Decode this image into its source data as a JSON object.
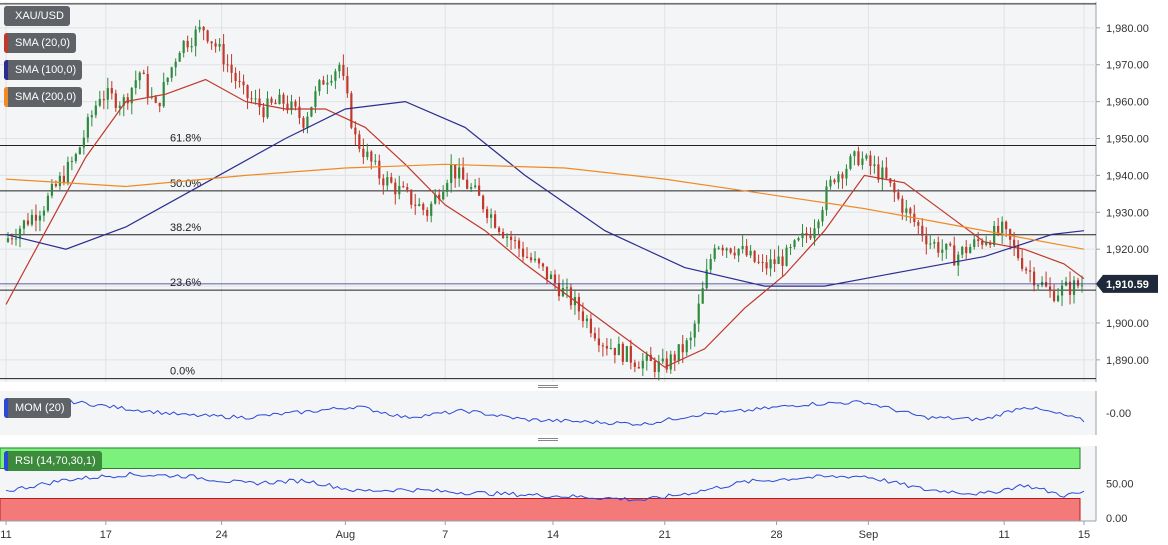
{
  "legends": {
    "pair": "XAU/USD",
    "sma20": "SMA (20,0)",
    "sma100": "SMA (100,0)",
    "sma200": "SMA (200,0)",
    "mom": "MOM (20)",
    "rsi": "RSI (14,70,30,1)"
  },
  "colors": {
    "background": "#f4f5f7",
    "grid": "#dfe2e6",
    "candle_up": "#2e8b3e",
    "candle_down": "#c0392b",
    "sma20": "#c0392b",
    "sma100": "#2b2c8f",
    "sma200": "#f08a24",
    "mom": "#2b49d6",
    "rsi": "#2b49d6",
    "rsi_overbought": "#7cf27c",
    "rsi_oversold": "#f47a7a",
    "price_tag": "#1e2a3a"
  },
  "chart_data": [
    {
      "type": "candlestick",
      "symbol": "XAU/USD",
      "ylim": [
        1884,
        1987
      ],
      "yticks": [
        "1,890.00",
        "1,900.00",
        "1,910.00",
        "1,920.00",
        "1,930.00",
        "1,940.00",
        "1,950.00",
        "1,960.00",
        "1,970.00",
        "1,980.00"
      ],
      "ytick_values": [
        1890,
        1900,
        1910,
        1920,
        1930,
        1940,
        1950,
        1960,
        1970,
        1980
      ],
      "x_labels": [
        "11",
        "17",
        "24",
        "Aug",
        "7",
        "14",
        "21",
        "28",
        "Sep",
        "11",
        "15"
      ],
      "x_label_index": [
        0,
        25,
        54,
        85,
        110,
        137,
        165,
        193,
        216,
        250,
        270
      ],
      "bar_count": 270,
      "last_price": "1,910.59",
      "last_price_value": 1910.59,
      "fibonacci": [
        {
          "label": "61.8%",
          "value": 1948.1
        },
        {
          "label": "50.0%",
          "value": 1935.8
        },
        {
          "label": "38.2%",
          "value": 1923.9
        },
        {
          "label": "23.6%",
          "value": 1908.9
        },
        {
          "label": "0.0%",
          "value": 1884.9
        }
      ],
      "top_line": 1986.5,
      "close_path": [
        [
          0,
          1922
        ],
        [
          10,
          1932
        ],
        [
          18,
          1945
        ],
        [
          24,
          1962
        ],
        [
          30,
          1960
        ],
        [
          34,
          1968
        ],
        [
          38,
          1958
        ],
        [
          44,
          1975
        ],
        [
          50,
          1980
        ],
        [
          55,
          1972
        ],
        [
          60,
          1962
        ],
        [
          65,
          1958
        ],
        [
          70,
          1960
        ],
        [
          75,
          1955
        ],
        [
          80,
          1966
        ],
        [
          84,
          1970
        ],
        [
          88,
          1950
        ],
        [
          94,
          1940
        ],
        [
          100,
          1935
        ],
        [
          106,
          1930
        ],
        [
          112,
          1942
        ],
        [
          118,
          1935
        ],
        [
          125,
          1925
        ],
        [
          131,
          1918
        ],
        [
          137,
          1912
        ],
        [
          143,
          1905
        ],
        [
          150,
          1895
        ],
        [
          158,
          1890
        ],
        [
          165,
          1888
        ],
        [
          172,
          1895
        ],
        [
          178,
          1922
        ],
        [
          184,
          1920
        ],
        [
          190,
          1915
        ],
        [
          196,
          1918
        ],
        [
          202,
          1925
        ],
        [
          208,
          1940
        ],
        [
          214,
          1945
        ],
        [
          220,
          1940
        ],
        [
          226,
          1930
        ],
        [
          232,
          1922
        ],
        [
          238,
          1918
        ],
        [
          244,
          1922
        ],
        [
          250,
          1925
        ],
        [
          256,
          1915
        ],
        [
          262,
          1908
        ],
        [
          270,
          1910.59
        ]
      ],
      "sma_series": [
        {
          "name": "SMA (20,0)",
          "period": 20,
          "points": [
            [
              0,
              1905
            ],
            [
              10,
              1925
            ],
            [
              20,
              1945
            ],
            [
              30,
              1960
            ],
            [
              40,
              1962
            ],
            [
              50,
              1966
            ],
            [
              60,
              1960
            ],
            [
              70,
              1958
            ],
            [
              80,
              1958
            ],
            [
              90,
              1953
            ],
            [
              100,
              1943
            ],
            [
              110,
              1932
            ],
            [
              120,
              1925
            ],
            [
              130,
              1916
            ],
            [
              140,
              1908
            ],
            [
              150,
              1900
            ],
            [
              160,
              1892
            ],
            [
              165,
              1888
            ],
            [
              175,
              1893
            ],
            [
              185,
              1904
            ],
            [
              195,
              1913
            ],
            [
              205,
              1925
            ],
            [
              215,
              1940
            ],
            [
              225,
              1938
            ],
            [
              235,
              1930
            ],
            [
              245,
              1922
            ],
            [
              255,
              1920
            ],
            [
              265,
              1916
            ],
            [
              270,
              1912
            ]
          ]
        },
        {
          "name": "SMA (100,0)",
          "period": 100,
          "points": [
            [
              0,
              1924
            ],
            [
              15,
              1920
            ],
            [
              30,
              1926
            ],
            [
              50,
              1938
            ],
            [
              70,
              1950
            ],
            [
              85,
              1958
            ],
            [
              100,
              1960
            ],
            [
              115,
              1953
            ],
            [
              130,
              1940
            ],
            [
              150,
              1925
            ],
            [
              170,
              1915
            ],
            [
              190,
              1910
            ],
            [
              205,
              1910
            ],
            [
              225,
              1914
            ],
            [
              245,
              1918
            ],
            [
              262,
              1924
            ],
            [
              270,
              1925
            ]
          ]
        },
        {
          "name": "SMA (200,0)",
          "period": 200,
          "points": [
            [
              0,
              1939
            ],
            [
              30,
              1937
            ],
            [
              60,
              1940
            ],
            [
              85,
              1942
            ],
            [
              110,
              1943
            ],
            [
              140,
              1942
            ],
            [
              165,
              1939
            ],
            [
              190,
              1935
            ],
            [
              215,
              1931
            ],
            [
              240,
              1926
            ],
            [
              270,
              1920
            ]
          ]
        }
      ]
    },
    {
      "type": "line",
      "name": "MOM (20)",
      "ylim": [
        -1,
        1
      ],
      "yticks": [
        "-0.00"
      ],
      "ytick_values": [
        0
      ],
      "points": [
        [
          0,
          0.2
        ],
        [
          15,
          0.55
        ],
        [
          30,
          0.2
        ],
        [
          45,
          -0.1
        ],
        [
          60,
          -0.2
        ],
        [
          75,
          0.05
        ],
        [
          88,
          0.3
        ],
        [
          100,
          -0.2
        ],
        [
          115,
          0.1
        ],
        [
          130,
          -0.3
        ],
        [
          145,
          -0.4
        ],
        [
          160,
          -0.5
        ],
        [
          172,
          -0.1
        ],
        [
          185,
          0.1
        ],
        [
          200,
          0.4
        ],
        [
          215,
          0.5
        ],
        [
          230,
          -0.2
        ],
        [
          245,
          -0.3
        ],
        [
          255,
          0.3
        ],
        [
          265,
          -0.1
        ],
        [
          270,
          -0.35
        ]
      ]
    },
    {
      "type": "line",
      "name": "RSI (14,70,30,1)",
      "ylim": [
        0,
        100
      ],
      "yticks": [
        "0.00",
        "50.00"
      ],
      "ytick_values": [
        0,
        50
      ],
      "overbought": 70,
      "oversold": 30,
      "points": [
        [
          0,
          40
        ],
        [
          15,
          55
        ],
        [
          30,
          62
        ],
        [
          45,
          60
        ],
        [
          60,
          50
        ],
        [
          75,
          54
        ],
        [
          88,
          40
        ],
        [
          100,
          42
        ],
        [
          115,
          38
        ],
        [
          130,
          35
        ],
        [
          145,
          32
        ],
        [
          160,
          28
        ],
        [
          172,
          38
        ],
        [
          185,
          52
        ],
        [
          200,
          58
        ],
        [
          215,
          60
        ],
        [
          230,
          42
        ],
        [
          245,
          36
        ],
        [
          255,
          48
        ],
        [
          265,
          34
        ],
        [
          270,
          38
        ]
      ]
    }
  ]
}
